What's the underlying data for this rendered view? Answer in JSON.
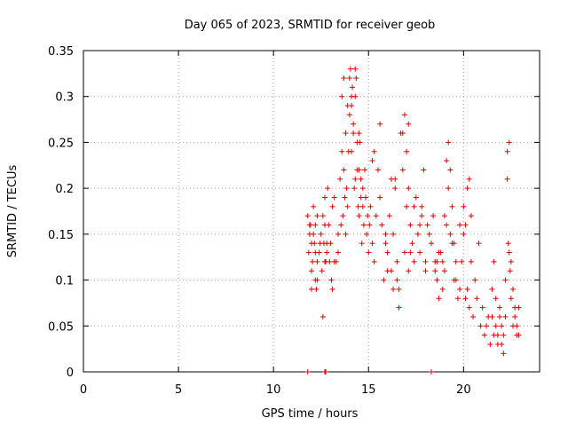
{
  "chart_data": {
    "type": "scatter",
    "title": "Day 065 of 2023, SRMTID for receiver geob",
    "xlabel": "GPS time / hours",
    "ylabel": "SRMTID / TECUs",
    "xlim": [
      0,
      24
    ],
    "ylim": [
      0,
      0.35
    ],
    "xticks": [
      0,
      5,
      10,
      15,
      20
    ],
    "xtick_labels": [
      "0",
      "5",
      "10",
      "15",
      "20"
    ],
    "yticks": [
      0,
      0.05,
      0.1,
      0.15,
      0.2,
      0.25,
      0.3,
      0.35
    ],
    "ytick_labels": [
      "0",
      "0.05",
      "0.1",
      "0.15",
      "0.2",
      "0.25",
      "0.3",
      "0.35"
    ],
    "grid": true,
    "marker": "+",
    "color": "#e00000",
    "series": [
      {
        "name": "SRMTID",
        "x": [
          11.8,
          11.85,
          11.9,
          11.95,
          12.0,
          12.05,
          12.1,
          12.15,
          12.2,
          12.25,
          12.3,
          11.9,
          12.0,
          12.1,
          12.2,
          12.3,
          12.5,
          12.55,
          12.6,
          12.65,
          12.7,
          12.75,
          12.8,
          12.85,
          12.9,
          12.95,
          13.0,
          13.05,
          13.1,
          13.2,
          13.3,
          13.4,
          13.5,
          13.55,
          13.6,
          13.65,
          13.7,
          13.75,
          13.8,
          13.85,
          13.9,
          13.95,
          14.0,
          14.05,
          14.1,
          14.15,
          14.2,
          14.25,
          14.3,
          14.35,
          14.4,
          14.45,
          14.5,
          14.55,
          14.6,
          14.65,
          14.7,
          14.75,
          14.8,
          14.85,
          14.9,
          14.95,
          15.0,
          15.05,
          13.6,
          13.7,
          13.8,
          14.0,
          14.1,
          14.2,
          14.3,
          14.4,
          14.5,
          13.9,
          14.1,
          14.3,
          14.5,
          14.7,
          12.6,
          12.7,
          15.1,
          15.2,
          15.3,
          15.4,
          15.5,
          15.6,
          15.7,
          15.8,
          15.9,
          16.0,
          16.1,
          16.2,
          16.3,
          16.4,
          16.5,
          16.6,
          16.7,
          16.8,
          16.9,
          17.0,
          17.1,
          17.2,
          17.3,
          17.4,
          17.5,
          17.6,
          17.7,
          17.8,
          17.9,
          18.0,
          18.1,
          18.2,
          15.3,
          15.6,
          15.9,
          16.2,
          16.5,
          16.8,
          17.1,
          17.4,
          17.7,
          18.0,
          16.9,
          17.0,
          17.1,
          16.0,
          16.3,
          16.6,
          18.3,
          18.4,
          18.5,
          18.6,
          18.7,
          18.8,
          18.9,
          19.0,
          19.1,
          19.2,
          19.3,
          19.4,
          19.5,
          19.6,
          19.7,
          19.8,
          19.9,
          20.0,
          20.1,
          20.2,
          20.3,
          20.4,
          20.5,
          20.6,
          20.7,
          20.8,
          20.9,
          21.0,
          21.1,
          21.2,
          21.3,
          21.4,
          19.2,
          19.3,
          19.4,
          18.9,
          19.0,
          20.2,
          20.3,
          20.0,
          20.4,
          18.5,
          18.7,
          19.6,
          19.8,
          20.1,
          19.5,
          19.1,
          21.5,
          21.6,
          21.7,
          21.8,
          21.9,
          22.0,
          22.1,
          22.2,
          22.3,
          22.4,
          22.5,
          22.6,
          22.7,
          22.8,
          22.9,
          21.6,
          21.7,
          21.8,
          22.0,
          22.2,
          22.3,
          22.4,
          22.5,
          22.6,
          22.7,
          22.8,
          21.9,
          22.1,
          22.35,
          22.45,
          22.9,
          21.5,
          12.0,
          12.2,
          12.4,
          12.7,
          13.1,
          13.4,
          12.3,
          12.8,
          13.2,
          12.45,
          14.6,
          15.2,
          16.4,
          17.2,
          17.8,
          18.6
        ],
        "y": [
          0.17,
          0.13,
          0.15,
          0.16,
          0.11,
          0.12,
          0.18,
          0.14,
          0.1,
          0.09,
          0.12,
          0.16,
          0.09,
          0.15,
          0.13,
          0.17,
          0.15,
          0.11,
          0.17,
          0.14,
          0.16,
          0.12,
          0.13,
          0.2,
          0.16,
          0.12,
          0.14,
          0.1,
          0.18,
          0.19,
          0.12,
          0.15,
          0.21,
          0.16,
          0.24,
          0.17,
          0.22,
          0.19,
          0.15,
          0.2,
          0.18,
          0.24,
          0.28,
          0.33,
          0.29,
          0.31,
          0.26,
          0.2,
          0.3,
          0.32,
          0.22,
          0.18,
          0.17,
          0.25,
          0.21,
          0.14,
          0.18,
          0.16,
          0.22,
          0.19,
          0.15,
          0.17,
          0.13,
          0.16,
          0.3,
          0.32,
          0.26,
          0.32,
          0.3,
          0.27,
          0.33,
          0.25,
          0.22,
          0.29,
          0.24,
          0.21,
          0.26,
          0.2,
          0.06,
          0.19,
          0.18,
          0.14,
          0.12,
          0.17,
          0.22,
          0.27,
          0.16,
          0.1,
          0.14,
          0.13,
          0.17,
          0.11,
          0.15,
          0.2,
          0.12,
          0.09,
          0.26,
          0.22,
          0.13,
          0.18,
          0.11,
          0.16,
          0.14,
          0.12,
          0.19,
          0.15,
          0.13,
          0.17,
          0.22,
          0.12,
          0.16,
          0.15,
          0.24,
          0.19,
          0.15,
          0.21,
          0.1,
          0.26,
          0.2,
          0.18,
          0.16,
          0.11,
          0.28,
          0.24,
          0.27,
          0.11,
          0.09,
          0.07,
          0.14,
          0.17,
          0.12,
          0.1,
          0.08,
          0.13,
          0.09,
          0.11,
          0.16,
          0.25,
          0.22,
          0.14,
          0.1,
          0.12,
          0.08,
          0.16,
          0.12,
          0.18,
          0.16,
          0.09,
          0.07,
          0.12,
          0.06,
          0.1,
          0.08,
          0.14,
          0.05,
          0.07,
          0.04,
          0.05,
          0.06,
          0.03,
          0.2,
          0.15,
          0.18,
          0.12,
          0.17,
          0.2,
          0.21,
          0.15,
          0.17,
          0.11,
          0.13,
          0.1,
          0.09,
          0.08,
          0.14,
          0.23,
          0.06,
          0.04,
          0.05,
          0.03,
          0.07,
          0.05,
          0.04,
          0.06,
          0.21,
          0.25,
          0.12,
          0.09,
          0.07,
          0.05,
          0.04,
          0.12,
          0.08,
          0.04,
          0.03,
          0.1,
          0.24,
          0.13,
          0.08,
          0.05,
          0.06,
          0.04,
          0.06,
          0.02,
          0.14,
          0.11,
          0.07,
          0.09,
          0.14,
          0.16,
          0.13,
          0.12,
          0.09,
          0.13,
          0.1,
          0.14,
          0.12,
          0.14,
          0.19,
          0.23,
          0.21,
          0.13,
          0.18,
          0.12
        ]
      },
      {
        "name": "zero-value markers",
        "x": [
          11.8,
          12.7,
          12.75,
          18.3
        ],
        "y": [
          0,
          0,
          0,
          0
        ]
      }
    ]
  }
}
